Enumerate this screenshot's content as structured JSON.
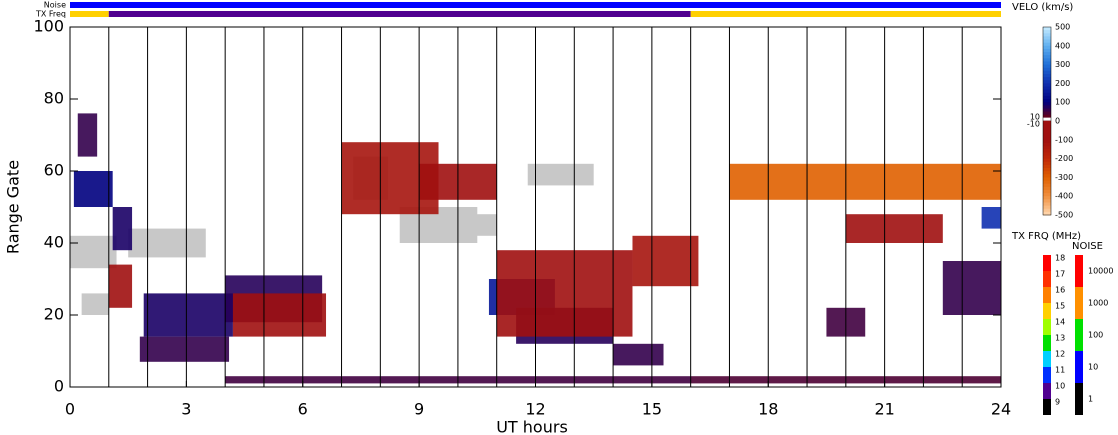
{
  "chart_data": {
    "type": "range-time",
    "xlabel": "UT hours",
    "ylabel": "Range Gate",
    "xlim": [
      0,
      24
    ],
    "xticks": [
      0,
      3,
      6,
      9,
      12,
      15,
      18,
      21,
      24
    ],
    "ylim": [
      0,
      100
    ],
    "yticks": [
      0,
      20,
      40,
      60,
      80,
      100
    ],
    "scan_lines": [
      1,
      2,
      3,
      4,
      5,
      6,
      7,
      8,
      9,
      10,
      11,
      12,
      13,
      14,
      15,
      16,
      17,
      18,
      19,
      20,
      21,
      22,
      23
    ],
    "noise_label": "Noise",
    "txfreq_label": "TX Freq",
    "noise_segments": [
      [
        0,
        24,
        10
      ]
    ],
    "txfreq_segments": [
      [
        0,
        1,
        15
      ],
      [
        1,
        16,
        10
      ],
      [
        16,
        24,
        15
      ]
    ],
    "patches": [
      [
        1.8,
        4.1,
        7,
        14,
        60
      ],
      [
        1.9,
        4.2,
        14,
        26,
        80
      ],
      [
        4.0,
        6.5,
        18,
        31,
        70
      ],
      [
        0.2,
        0.7,
        64,
        76,
        60
      ],
      [
        0.1,
        1.1,
        50,
        60,
        100
      ],
      [
        1.1,
        1.6,
        38,
        50,
        80
      ],
      [
        10.8,
        12.5,
        20,
        30,
        150
      ],
      [
        11.5,
        14,
        12,
        22,
        70
      ],
      [
        14,
        15.3,
        6,
        12,
        60
      ],
      [
        22.5,
        24,
        20,
        35,
        60
      ],
      [
        19.5,
        20.5,
        14,
        22,
        50
      ],
      [
        4,
        16,
        1,
        3,
        50
      ],
      [
        16,
        24,
        1,
        3,
        40
      ],
      [
        23.5,
        24,
        44,
        50,
        200
      ],
      [
        1,
        1.6,
        22,
        34,
        -80
      ],
      [
        4.2,
        6.6,
        14,
        26,
        -90
      ],
      [
        11,
        14.5,
        14,
        38,
        -100
      ],
      [
        14.5,
        16.2,
        28,
        42,
        -120
      ],
      [
        7,
        9.5,
        48,
        68,
        -120
      ],
      [
        9,
        11,
        52,
        62,
        -100
      ],
      [
        20,
        22.5,
        40,
        48,
        -100
      ],
      [
        17,
        24,
        52,
        62,
        -300
      ]
    ],
    "ground_scatter": [
      [
        0,
        1.2,
        33,
        42
      ],
      [
        1.5,
        3.5,
        36,
        44
      ],
      [
        0.3,
        1,
        20,
        26
      ],
      [
        7.3,
        8.2,
        52,
        64
      ],
      [
        11.8,
        13.5,
        56,
        62
      ],
      [
        8.5,
        10.5,
        40,
        50
      ],
      [
        10,
        11,
        42,
        48
      ]
    ],
    "ground_color": "#c8c8c8",
    "velo_title": "VELO (km/s)",
    "velo_ticks": [
      500,
      400,
      300,
      200,
      100,
      0,
      -100,
      -200,
      -300,
      -400,
      -500
    ],
    "velo_small": [
      10,
      -10
    ],
    "velo_colors": [
      "#c8ecff",
      "#60b0f0",
      "#2070d8",
      "#1030b0",
      "#000080",
      "#800000",
      "#a01010",
      "#c02808",
      "#e06000",
      "#f09040",
      "#ffd8b0"
    ],
    "freq_title": "TX FRQ (MHz)",
    "freq_ticks": [
      18,
      17,
      16,
      15,
      14,
      13,
      12,
      11,
      10,
      9
    ],
    "freq_colors": [
      "#ff0000",
      "#ff3000",
      "#ff8000",
      "#ffd000",
      "#a0ff00",
      "#00e000",
      "#00d0ff",
      "#0030ff",
      "#500090",
      "#000000"
    ],
    "noise_title": "NOISE",
    "noise_ticks": [
      10000,
      1000,
      100,
      10,
      1
    ],
    "noise_colors": [
      "#ff0000",
      "#ff9000",
      "#00e000",
      "#0000ff",
      "#000000"
    ]
  }
}
